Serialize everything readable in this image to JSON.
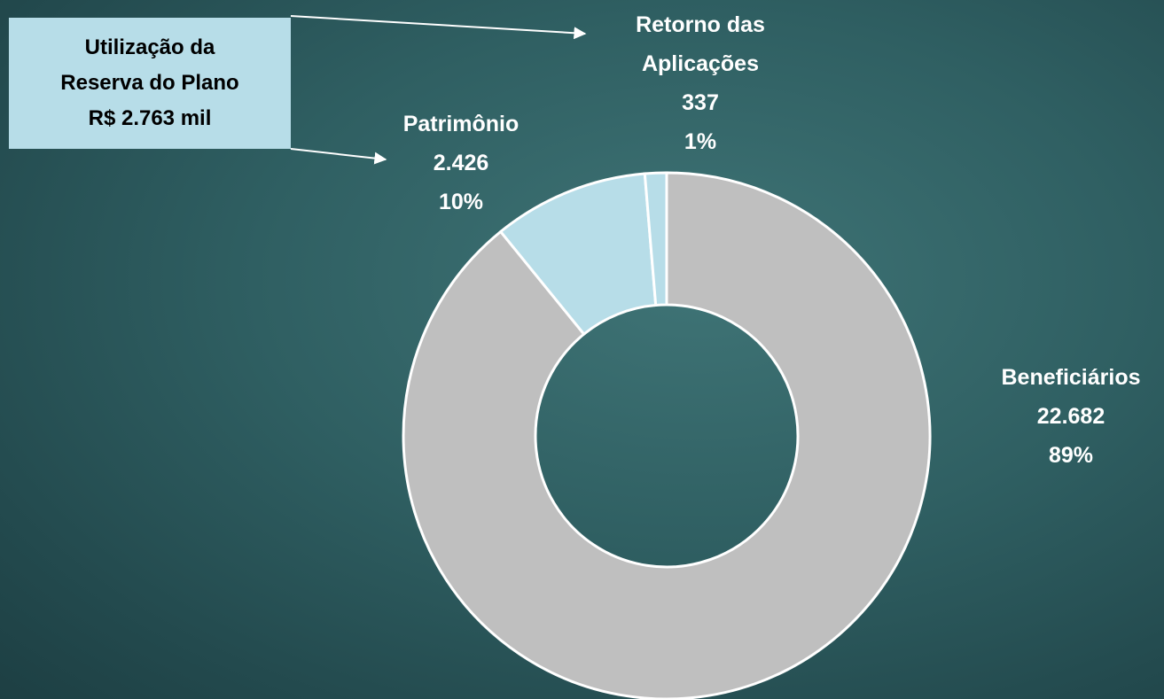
{
  "chart_data": {
    "type": "donut",
    "categories": [
      "Beneficiários",
      "Patrimônio",
      "Retorno das Aplicações"
    ],
    "values": [
      22682,
      2426,
      337
    ],
    "value_labels": [
      "22.682",
      "2.426",
      "337"
    ],
    "percent_labels": [
      "89%",
      "10%",
      "1%"
    ],
    "colors": [
      "#bfbfbf",
      "#b7dde8",
      "#b7dde8"
    ],
    "annotation": [
      "Utilização da",
      "Reserva do Plano",
      "R$ 2.763 mil"
    ]
  }
}
